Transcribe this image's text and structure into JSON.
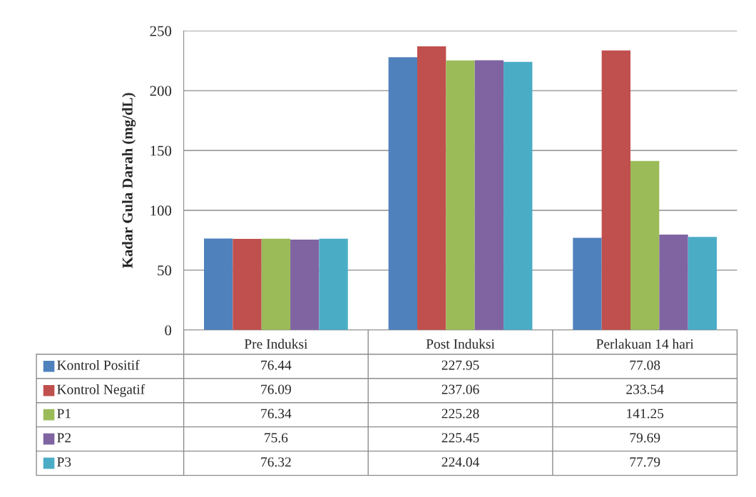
{
  "chart_data": {
    "type": "bar",
    "ylabel": "Kadar Gula Darah (mg/dL)",
    "categories": [
      "Pre Induksi",
      "Post Induksi",
      "Perlakuan 14 hari"
    ],
    "series": [
      {
        "name": "Kontrol Positif",
        "color": "#4f81bd",
        "values": [
          76.44,
          227.95,
          77.08
        ]
      },
      {
        "name": "Kontrol Negatif",
        "color": "#c0504d",
        "values": [
          76.09,
          237.06,
          233.54
        ]
      },
      {
        "name": "P1",
        "color": "#9bbb59",
        "values": [
          76.34,
          225.28,
          141.25
        ]
      },
      {
        "name": "P2",
        "color": "#8064a2",
        "values": [
          75.6,
          225.45,
          79.69
        ]
      },
      {
        "name": "P3",
        "color": "#4bacc6",
        "values": [
          76.32,
          224.04,
          77.79
        ]
      }
    ],
    "ylim": [
      0,
      250
    ],
    "yticks": [
      0,
      50,
      100,
      150,
      200,
      250
    ],
    "grid": "y",
    "legend": "bottom",
    "data_labels": true
  }
}
